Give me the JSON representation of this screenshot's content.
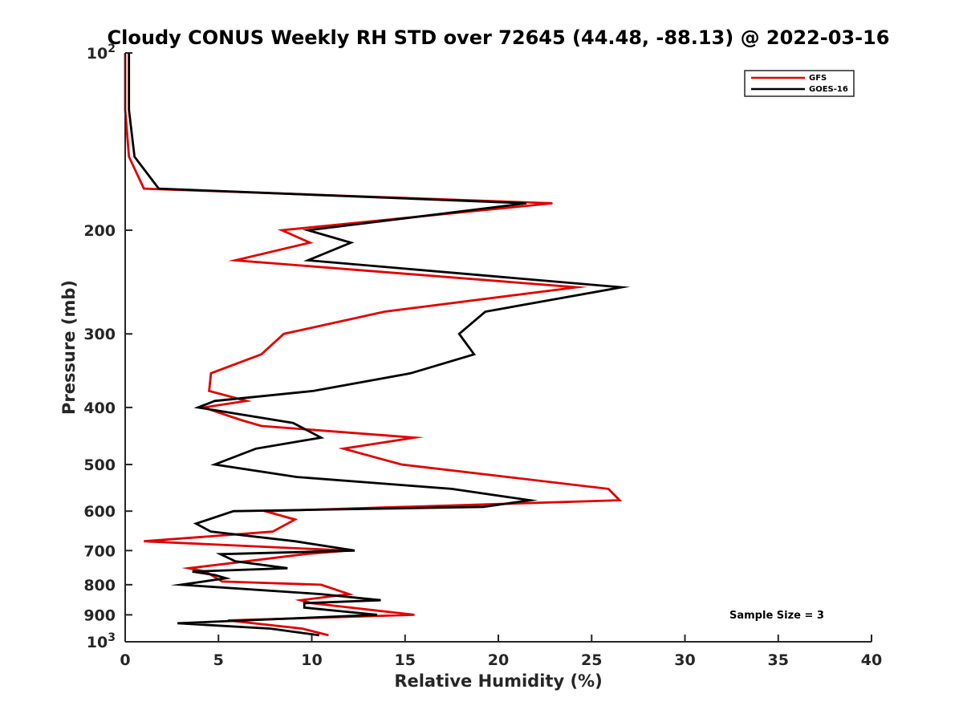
{
  "chart_data": {
    "type": "line",
    "title": "Cloudy CONUS Weekly RH STD over 72645 (44.48, -88.13) @ 2022-03-16",
    "xlabel": "Relative Humidity (%)",
    "ylabel": "Pressure (mb)",
    "xlim": [
      0,
      40
    ],
    "ylim": [
      100,
      1000
    ],
    "y_scale": "log",
    "y_reversed": true,
    "x_ticks": [
      0,
      5,
      10,
      15,
      20,
      25,
      30,
      35,
      40
    ],
    "y_ticks": [
      {
        "value": 100,
        "label": "10",
        "sup": "2"
      },
      {
        "value": 200,
        "label": "200",
        "sup": ""
      },
      {
        "value": 300,
        "label": "300",
        "sup": ""
      },
      {
        "value": 400,
        "label": "400",
        "sup": ""
      },
      {
        "value": 500,
        "label": "500",
        "sup": ""
      },
      {
        "value": 600,
        "label": "600",
        "sup": ""
      },
      {
        "value": 700,
        "label": "700",
        "sup": ""
      },
      {
        "value": 800,
        "label": "800",
        "sup": ""
      },
      {
        "value": 900,
        "label": "900",
        "sup": ""
      },
      {
        "value": 1000,
        "label": "10",
        "sup": "3"
      }
    ],
    "grid": false,
    "legend_position": "top-right",
    "annotation": "Sample Size = 3",
    "series": [
      {
        "name": "GFS",
        "color": "#e00000",
        "points": [
          [
            0.0,
            100
          ],
          [
            0.0,
            125
          ],
          [
            0.2,
            150
          ],
          [
            1.0,
            170
          ],
          [
            22.9,
            180
          ],
          [
            8.4,
            200
          ],
          [
            9.9,
            210
          ],
          [
            5.9,
            225
          ],
          [
            24.2,
            250
          ],
          [
            13.9,
            275
          ],
          [
            8.5,
            300
          ],
          [
            7.3,
            325
          ],
          [
            4.6,
            350
          ],
          [
            4.5,
            375
          ],
          [
            6.5,
            390
          ],
          [
            4.2,
            400
          ],
          [
            6.2,
            420
          ],
          [
            7.3,
            430
          ],
          [
            15.5,
            450
          ],
          [
            11.7,
            470
          ],
          [
            14.8,
            500
          ],
          [
            25.9,
            550
          ],
          [
            26.5,
            575
          ],
          [
            7.5,
            600
          ],
          [
            9.1,
            620
          ],
          [
            7.9,
            650
          ],
          [
            1.0,
            675
          ],
          [
            11.9,
            700
          ],
          [
            9.6,
            710
          ],
          [
            6.5,
            730
          ],
          [
            3.4,
            750
          ],
          [
            4.3,
            760
          ],
          [
            5.2,
            790
          ],
          [
            10.5,
            800
          ],
          [
            12.0,
            830
          ],
          [
            9.4,
            850
          ],
          [
            10.0,
            860
          ],
          [
            15.5,
            900
          ],
          [
            5.5,
            920
          ],
          [
            9.5,
            950
          ],
          [
            10.9,
            975
          ]
        ]
      },
      {
        "name": "GOES-16",
        "color": "#000000",
        "points": [
          [
            0.2,
            100
          ],
          [
            0.2,
            125
          ],
          [
            0.5,
            150
          ],
          [
            1.8,
            170
          ],
          [
            21.5,
            180
          ],
          [
            9.8,
            200
          ],
          [
            12.1,
            210
          ],
          [
            9.8,
            225
          ],
          [
            26.6,
            250
          ],
          [
            19.3,
            275
          ],
          [
            17.9,
            300
          ],
          [
            18.7,
            325
          ],
          [
            15.3,
            350
          ],
          [
            10.1,
            375
          ],
          [
            4.8,
            390
          ],
          [
            3.9,
            400
          ],
          [
            9.0,
            425
          ],
          [
            10.5,
            450
          ],
          [
            7.0,
            470
          ],
          [
            4.8,
            500
          ],
          [
            9.2,
            525
          ],
          [
            17.5,
            550
          ],
          [
            21.7,
            575
          ],
          [
            19.2,
            590
          ],
          [
            5.8,
            600
          ],
          [
            3.8,
            630
          ],
          [
            4.6,
            650
          ],
          [
            9.1,
            675
          ],
          [
            12.3,
            700
          ],
          [
            5.1,
            710
          ],
          [
            5.9,
            730
          ],
          [
            8.7,
            750
          ],
          [
            3.6,
            760
          ],
          [
            4.8,
            770
          ],
          [
            5.4,
            780
          ],
          [
            3.0,
            800
          ],
          [
            10.5,
            830
          ],
          [
            13.7,
            850
          ],
          [
            9.6,
            860
          ],
          [
            9.6,
            875
          ],
          [
            13.5,
            900
          ],
          [
            2.8,
            930
          ],
          [
            7.8,
            950
          ],
          [
            10.4,
            975
          ]
        ]
      }
    ]
  }
}
